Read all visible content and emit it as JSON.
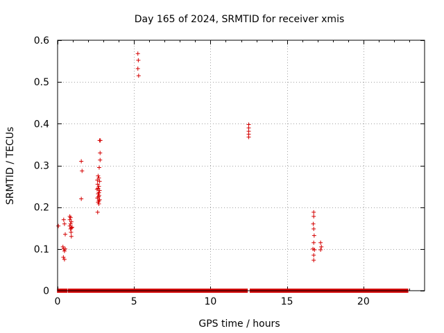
{
  "chart_data": {
    "type": "scatter",
    "title": "Day 165 of 2024, SRMTID for receiver xmis",
    "xlabel": "GPS time / hours",
    "ylabel": "SRMTID / TECUs",
    "xlim": [
      0,
      24
    ],
    "ylim": [
      0,
      0.6
    ],
    "xticks": [
      0,
      5,
      10,
      15,
      20
    ],
    "yticks": [
      0,
      0.1,
      0.2,
      0.3,
      0.4,
      0.5,
      0.6
    ],
    "xtick_labels": [
      "0",
      "5",
      "10",
      "15",
      "20"
    ],
    "ytick_labels": [
      "0",
      "0.1",
      "0.2",
      "0.3",
      "0.4",
      "0.5",
      "0.6"
    ],
    "grid": true,
    "marker": "+",
    "color": "#d40000",
    "series": [
      {
        "name": "SRMTID",
        "points": [
          [
            0.05,
            0.155
          ],
          [
            0.4,
            0.17
          ],
          [
            0.45,
            0.16
          ],
          [
            0.5,
            0.135
          ],
          [
            0.35,
            0.105
          ],
          [
            0.4,
            0.1
          ],
          [
            0.45,
            0.095
          ],
          [
            0.5,
            0.1
          ],
          [
            0.38,
            0.08
          ],
          [
            0.45,
            0.075
          ],
          [
            0.8,
            0.178
          ],
          [
            0.85,
            0.175
          ],
          [
            0.8,
            0.17
          ],
          [
            0.9,
            0.165
          ],
          [
            0.85,
            0.16
          ],
          [
            0.8,
            0.155
          ],
          [
            0.9,
            0.15
          ],
          [
            0.85,
            0.148
          ],
          [
            0.95,
            0.152
          ],
          [
            0.88,
            0.14
          ],
          [
            0.9,
            0.13
          ],
          [
            1.55,
            0.31
          ],
          [
            1.6,
            0.287
          ],
          [
            1.55,
            0.22
          ],
          [
            2.75,
            0.36
          ],
          [
            2.8,
            0.36
          ],
          [
            2.78,
            0.33
          ],
          [
            2.78,
            0.313
          ],
          [
            2.72,
            0.295
          ],
          [
            2.65,
            0.275
          ],
          [
            2.7,
            0.27
          ],
          [
            2.6,
            0.265
          ],
          [
            2.75,
            0.262
          ],
          [
            2.62,
            0.255
          ],
          [
            2.7,
            0.25
          ],
          [
            2.65,
            0.245
          ],
          [
            2.58,
            0.243
          ],
          [
            2.75,
            0.24
          ],
          [
            2.7,
            0.235
          ],
          [
            2.65,
            0.232
          ],
          [
            2.72,
            0.228
          ],
          [
            2.68,
            0.225
          ],
          [
            2.6,
            0.222
          ],
          [
            2.75,
            0.218
          ],
          [
            2.7,
            0.215
          ],
          [
            2.65,
            0.212
          ],
          [
            2.7,
            0.208
          ],
          [
            2.62,
            0.188
          ],
          [
            5.25,
            0.568
          ],
          [
            5.28,
            0.552
          ],
          [
            5.25,
            0.532
          ],
          [
            5.3,
            0.515
          ],
          [
            12.5,
            0.398
          ],
          [
            12.5,
            0.39
          ],
          [
            12.5,
            0.382
          ],
          [
            12.5,
            0.375
          ],
          [
            12.5,
            0.368
          ],
          [
            16.75,
            0.188
          ],
          [
            16.75,
            0.178
          ],
          [
            16.72,
            0.16
          ],
          [
            16.75,
            0.148
          ],
          [
            16.78,
            0.132
          ],
          [
            16.75,
            0.115
          ],
          [
            16.7,
            0.1
          ],
          [
            16.8,
            0.098
          ],
          [
            16.75,
            0.085
          ],
          [
            16.75,
            0.073
          ],
          [
            17.2,
            0.115
          ],
          [
            17.25,
            0.105
          ],
          [
            17.2,
            0.098
          ]
        ],
        "zero_segments": [
          [
            0.1,
            0.5
          ],
          [
            0.8,
            1.0
          ],
          [
            1.1,
            2.6
          ],
          [
            2.8,
            6.1
          ],
          [
            6.3,
            6.5
          ],
          [
            6.6,
            10.5
          ],
          [
            10.7,
            12.3
          ],
          [
            12.7,
            22.8
          ]
        ]
      }
    ]
  }
}
